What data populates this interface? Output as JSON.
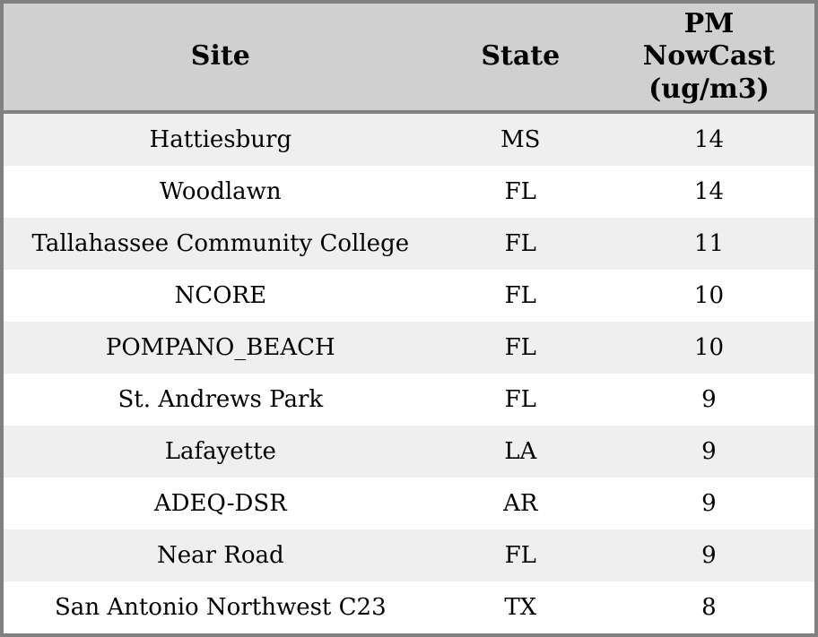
{
  "colors": {
    "border": "#808080",
    "header_bg": "#d0d0d0",
    "row_alt_bg": "#efefef",
    "row_bg": "#ffffff",
    "text": "#000000"
  },
  "chart_data": {
    "type": "table",
    "title": "",
    "columns": [
      "Site",
      "State",
      "PM NowCast (ug/m3)"
    ],
    "rows": [
      [
        "Hattiesburg",
        "MS",
        14
      ],
      [
        "Woodlawn",
        "FL",
        14
      ],
      [
        "Tallahassee Community College",
        "FL",
        11
      ],
      [
        "NCORE",
        "FL",
        10
      ],
      [
        "POMPANO_BEACH",
        "FL",
        10
      ],
      [
        "St. Andrews Park",
        "FL",
        9
      ],
      [
        "Lafayette",
        "LA",
        9
      ],
      [
        "ADEQ-DSR",
        "AR",
        9
      ],
      [
        "Near Road",
        "FL",
        9
      ],
      [
        "San Antonio Northwest C23",
        "TX",
        8
      ]
    ],
    "layout": {
      "header_align": "center",
      "cell_align": "center",
      "alternating_rows": true,
      "grid": "outer-border-and-header-separator-only"
    }
  }
}
